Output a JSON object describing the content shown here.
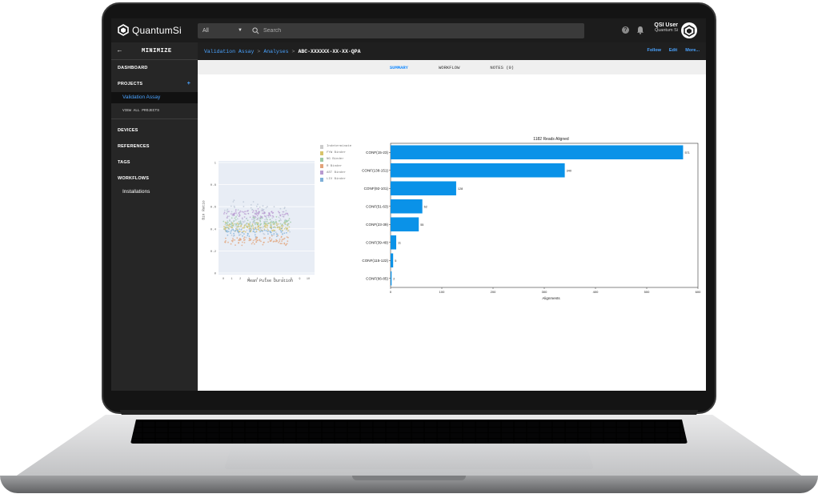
{
  "app": {
    "brand": "QuantumSi",
    "search": {
      "scope": "All",
      "placeholder": "Search"
    },
    "user": {
      "name": "QSI User",
      "org": "Quantum Si"
    }
  },
  "sidebar": {
    "minimize_label": "MINIMIZE",
    "items": [
      {
        "label": "DASHBOARD"
      },
      {
        "label": "PROJECTS"
      },
      {
        "label": "DEVICES"
      },
      {
        "label": "REFERENCES"
      },
      {
        "label": "TAGS"
      },
      {
        "label": "WORKFLOWS"
      }
    ],
    "projects_sub": {
      "active": "Validation Assay",
      "view_all": "VIEW ALL PROJECTS"
    },
    "workflows_sub": {
      "installations": "Installations"
    }
  },
  "breadcrumb": {
    "items": [
      "Validation Assay",
      "Analyses"
    ],
    "separator": ">",
    "current": "ABC-XXXXXX-XX-XX-QPA",
    "actions": [
      "Follow",
      "Edit",
      "More..."
    ]
  },
  "tabs": [
    {
      "label": "SUMMARY",
      "active": true
    },
    {
      "label": "WORKFLOW",
      "active": false
    },
    {
      "label": "NOTES (0)",
      "active": false
    }
  ],
  "colors": {
    "accent": "#1a8cff",
    "bar": "#0a92e8",
    "topbar": "#1c1c1c",
    "sidebar": "#262626"
  },
  "scatter": {
    "ylabel": "Bin Ratio",
    "xlabel": "Mean Pulse Duration",
    "yticks": [
      "1",
      "0.8",
      "0.6",
      "0.4",
      "0.2",
      "0"
    ],
    "xticks": [
      "0",
      "1",
      "2",
      "3",
      "4",
      "5",
      "6",
      "7",
      "8",
      "9",
      "10"
    ],
    "legend": [
      "Indeterminate",
      "FYW Binder",
      "NG Binder",
      "R Binder",
      "AST Binder",
      "LIV Binder"
    ]
  },
  "chart_data": {
    "type": "bar",
    "orientation": "horizontal",
    "title": "1182 Reads Aligned",
    "xlabel": "Alignments",
    "categories": [
      "CONF(15-23)",
      "CONF(138-151)",
      "CONF(92-101)",
      "CONF(51-63)",
      "CONF(23-39)",
      "CONF(39-49)",
      "CONF(115-122)",
      "CONF(66-85)"
    ],
    "values": [
      571,
      340,
      128,
      62,
      55,
      11,
      5,
      2
    ],
    "xlim": [
      0,
      600
    ],
    "xticks": [
      0,
      100,
      200,
      300,
      400,
      500,
      600
    ]
  }
}
